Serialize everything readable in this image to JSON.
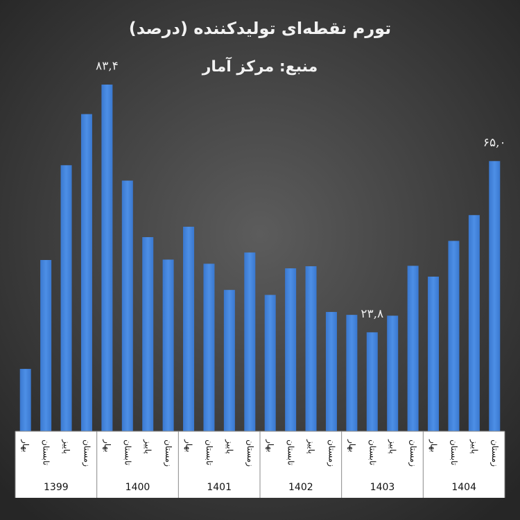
{
  "chart_data": {
    "type": "bar",
    "title": "تورم نقطه‌ای تولیدکننده (درصد)",
    "subtitle": "منبع: مرکز آمار",
    "categories": [
      "بهار",
      "تابستان",
      "پاییز",
      "زمستان",
      "بهار",
      "تابستان",
      "پاییز",
      "زمستان",
      "بهار",
      "تابستان",
      "پاییز",
      "زمستان",
      "بهار",
      "تابستان",
      "پاییز",
      "زمستان",
      "بهار",
      "تابستان",
      "پاییز",
      "زمستان",
      "بهار",
      "تابستان",
      "پاییز",
      "زمستان"
    ],
    "groups": [
      "1399",
      "1400",
      "1401",
      "1402",
      "1403",
      "1404"
    ],
    "values": [
      15.0,
      41.2,
      64.0,
      76.3,
      83.4,
      60.3,
      46.7,
      41.3,
      49.2,
      40.3,
      34.0,
      43.0,
      32.8,
      39.2,
      39.7,
      28.7,
      28.0,
      23.8,
      27.8,
      39.8,
      37.2,
      45.8,
      52.0,
      65.0
    ],
    "value_labels": [
      null,
      null,
      null,
      null,
      "۸۳,۴",
      null,
      null,
      null,
      null,
      null,
      null,
      null,
      null,
      null,
      null,
      null,
      null,
      "۲۳,۸",
      null,
      null,
      null,
      null,
      null,
      "۶۵,۰"
    ],
    "color": "#4285dc"
  }
}
